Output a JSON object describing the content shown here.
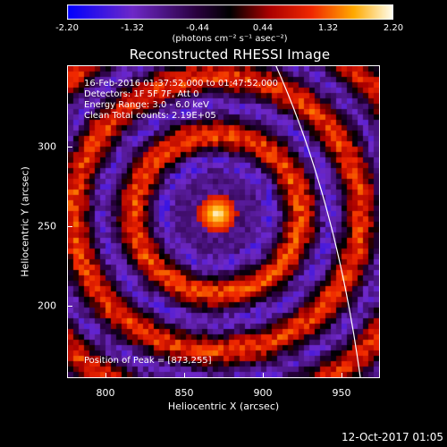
{
  "colorbar": {
    "ticks": [
      "-2.20",
      "-1.32",
      "-0.44",
      "0.44",
      "1.32",
      "2.20"
    ],
    "units_label": "(photons cm⁻² s⁻¹ asec⁻²)"
  },
  "plot": {
    "title": "Reconstructed RHESSI Image",
    "info_lines": [
      "16-Feb-2016 01:37:52.000 to 01:47:52.000",
      "Detectors: 1F 5F 7F, Att 0",
      "Energy Range: 3.0 - 6.0 keV",
      "Clean    Total counts: 2.19E+05"
    ],
    "peak_label": "Position of Peak = [873,255]",
    "x_ticks": [
      "800",
      "850",
      "900",
      "950"
    ],
    "y_ticks": [
      "300",
      "250",
      "200"
    ],
    "x_axis_label": "Heliocentric X (arcsec)",
    "y_axis_label": "Heliocentric Y (arcsec)",
    "x_range": [
      777,
      977
    ],
    "y_range": [
      150,
      350
    ],
    "peak_position": [
      873,
      255
    ]
  },
  "footer": {
    "timestamp": "12-Oct-2017 01:05"
  },
  "colors": {
    "background": "#000000",
    "text": "#ffffff",
    "limb_line": "#ffffff"
  }
}
